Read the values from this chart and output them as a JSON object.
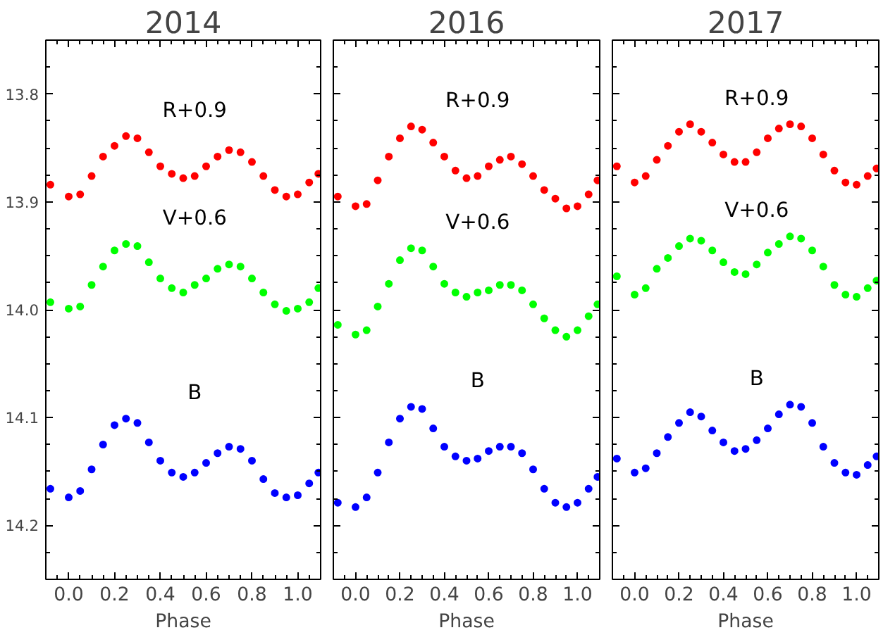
{
  "chart_data": [
    {
      "type": "scatter",
      "title": "2014",
      "xlabel": "Phase",
      "marker": "circle",
      "grid": false,
      "xlim": [
        -0.1,
        1.1
      ],
      "ylim": [
        14.25,
        13.75
      ],
      "xticks": [
        {
          "value": 0,
          "label": "0.0"
        },
        {
          "value": 0.2,
          "label": "0.2"
        },
        {
          "value": 0.4,
          "label": "0.4"
        },
        {
          "value": 0.6,
          "label": "0.6"
        },
        {
          "value": 0.8,
          "label": "0.8"
        },
        {
          "value": 1,
          "label": "1.0"
        }
      ],
      "yticks": [
        13.8,
        13.9,
        {
          "value": 14,
          "label": "14.0"
        },
        14.1,
        14.2
      ],
      "x": [
        -0.08,
        0.0,
        0.05,
        0.1,
        0.15,
        0.2,
        0.25,
        0.3,
        0.35,
        0.4,
        0.45,
        0.5,
        0.55,
        0.6,
        0.65,
        0.7,
        0.75,
        0.8,
        0.85,
        0.9,
        0.95,
        1.0,
        1.05,
        1.09
      ],
      "series": [
        {
          "name": "R+0.9",
          "color": "#ff0000",
          "values": [
            13.884,
            13.895,
            13.893,
            13.876,
            13.858,
            13.848,
            13.839,
            13.841,
            13.854,
            13.867,
            13.874,
            13.878,
            13.876,
            13.867,
            13.858,
            13.852,
            13.854,
            13.863,
            13.876,
            13.889,
            13.895,
            13.893,
            13.882,
            13.874
          ]
        },
        {
          "name": "V+0.6",
          "color": "#00ff00",
          "values": [
            13.993,
            13.999,
            13.997,
            13.977,
            13.96,
            13.945,
            13.939,
            13.941,
            13.956,
            13.971,
            13.98,
            13.984,
            13.977,
            13.971,
            13.962,
            13.958,
            13.96,
            13.971,
            13.984,
            13.995,
            14.001,
            13.999,
            13.993,
            13.98
          ]
        },
        {
          "name": "B",
          "color": "#0000ff",
          "values": [
            14.166,
            14.174,
            14.168,
            14.148,
            14.125,
            14.107,
            14.101,
            14.105,
            14.123,
            14.14,
            14.151,
            14.155,
            14.151,
            14.142,
            14.133,
            14.127,
            14.129,
            14.14,
            14.157,
            14.17,
            14.174,
            14.172,
            14.161,
            14.151
          ]
        }
      ]
    },
    {
      "type": "scatter",
      "title": "2016",
      "xlabel": "Phase",
      "marker": "circle",
      "grid": false,
      "tick_labels": "x",
      "xlim": [
        -0.1,
        1.1
      ],
      "ylim": [
        14.25,
        13.75
      ],
      "xticks": [
        {
          "value": 0,
          "label": "0.0"
        },
        {
          "value": 0.2,
          "label": "0.2"
        },
        {
          "value": 0.4,
          "label": "0.4"
        },
        {
          "value": 0.6,
          "label": "0.6"
        },
        {
          "value": 0.8,
          "label": "0.8"
        },
        {
          "value": 1,
          "label": "1.0"
        }
      ],
      "yticks": [
        13.8,
        13.9,
        14,
        14.1,
        14.2
      ],
      "x": [
        -0.08,
        0.0,
        0.05,
        0.1,
        0.15,
        0.2,
        0.25,
        0.3,
        0.35,
        0.4,
        0.45,
        0.5,
        0.55,
        0.6,
        0.65,
        0.7,
        0.75,
        0.8,
        0.85,
        0.9,
        0.95,
        1.0,
        1.05,
        1.09
      ],
      "series": [
        {
          "name": "R+0.9",
          "color": "#ff0000",
          "values": [
            13.895,
            13.904,
            13.902,
            13.88,
            13.858,
            13.841,
            13.83,
            13.833,
            13.845,
            13.858,
            13.871,
            13.878,
            13.876,
            13.867,
            13.861,
            13.858,
            13.865,
            13.876,
            13.889,
            13.897,
            13.906,
            13.904,
            13.893,
            13.88
          ]
        },
        {
          "name": "V+0.6",
          "color": "#00ff00",
          "values": [
            14.014,
            14.023,
            14.019,
            13.997,
            13.976,
            13.954,
            13.943,
            13.945,
            13.96,
            13.976,
            13.984,
            13.988,
            13.984,
            13.982,
            13.977,
            13.977,
            13.982,
            13.995,
            14.008,
            14.019,
            14.025,
            14.019,
            14.006,
            13.995
          ]
        },
        {
          "name": "B",
          "color": "#0000ff",
          "values": [
            14.179,
            14.183,
            14.174,
            14.151,
            14.123,
            14.101,
            14.09,
            14.092,
            14.11,
            14.127,
            14.136,
            14.14,
            14.138,
            14.131,
            14.127,
            14.127,
            14.133,
            14.148,
            14.166,
            14.179,
            14.183,
            14.179,
            14.166,
            14.155
          ]
        }
      ]
    },
    {
      "type": "scatter",
      "title": "2017",
      "xlabel": "Phase",
      "marker": "circle",
      "grid": false,
      "tick_labels": "x",
      "xlim": [
        -0.1,
        1.1
      ],
      "ylim": [
        14.25,
        13.75
      ],
      "xticks": [
        {
          "value": 0,
          "label": "0.0"
        },
        {
          "value": 0.2,
          "label": "0.2"
        },
        {
          "value": 0.4,
          "label": "0.4"
        },
        {
          "value": 0.6,
          "label": "0.6"
        },
        {
          "value": 0.8,
          "label": "0.8"
        },
        {
          "value": 1,
          "label": "1.0"
        }
      ],
      "yticks": [
        13.8,
        13.9,
        14,
        14.1,
        14.2
      ],
      "x": [
        -0.08,
        0.0,
        0.05,
        0.1,
        0.15,
        0.2,
        0.25,
        0.3,
        0.35,
        0.4,
        0.45,
        0.5,
        0.55,
        0.6,
        0.65,
        0.7,
        0.75,
        0.8,
        0.85,
        0.9,
        0.95,
        1.0,
        1.05,
        1.09
      ],
      "series": [
        {
          "name": "R+0.9",
          "color": "#ff0000",
          "values": [
            13.867,
            13.882,
            13.876,
            13.861,
            13.848,
            13.835,
            13.828,
            13.835,
            13.845,
            13.856,
            13.863,
            13.863,
            13.854,
            13.841,
            13.832,
            13.828,
            13.83,
            13.841,
            13.856,
            13.871,
            13.882,
            13.884,
            13.876,
            13.869
          ]
        },
        {
          "name": "V+0.6",
          "color": "#00ff00",
          "values": [
            13.969,
            13.986,
            13.98,
            13.962,
            13.952,
            13.941,
            13.934,
            13.936,
            13.945,
            13.956,
            13.965,
            13.967,
            13.958,
            13.947,
            13.939,
            13.932,
            13.934,
            13.945,
            13.96,
            13.977,
            13.986,
            13.988,
            13.98,
            13.973
          ]
        },
        {
          "name": "B",
          "color": "#0000ff",
          "values": [
            14.138,
            14.151,
            14.147,
            14.133,
            14.118,
            14.105,
            14.095,
            14.099,
            14.112,
            14.123,
            14.131,
            14.129,
            14.121,
            14.11,
            14.097,
            14.088,
            14.09,
            14.105,
            14.127,
            14.142,
            14.151,
            14.153,
            14.144,
            14.136
          ]
        }
      ]
    }
  ]
}
